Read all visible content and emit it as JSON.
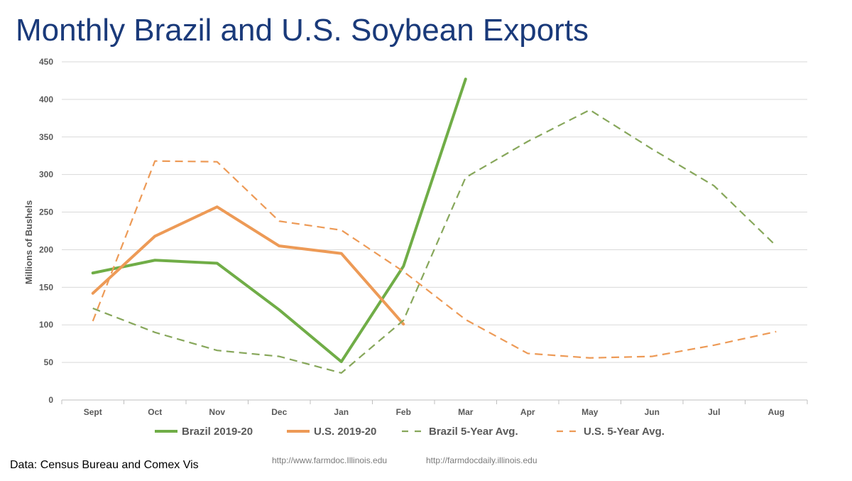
{
  "slide": {
    "title": "Monthly Brazil and U.S. Soybean Exports",
    "source": "Data: Census Bureau and Comex Vis",
    "link1": "http://www.farmdoc.Illinois.edu",
    "link2": "http://farmdocdaily.illinois.edu"
  },
  "chart_data": {
    "type": "line",
    "title": "Monthly Brazil and U.S. Soybean Exports",
    "xlabel": "",
    "ylabel": "Millions of Bushels",
    "ylim": [
      0,
      450
    ],
    "yticks": [
      0,
      50,
      100,
      150,
      200,
      250,
      300,
      350,
      400,
      450
    ],
    "grid": true,
    "legend_position": "bottom",
    "categories": [
      "Sept",
      "Oct",
      "Nov",
      "Dec",
      "Jan",
      "Feb",
      "Mar",
      "Apr",
      "May",
      "Jun",
      "Jul",
      "Aug"
    ],
    "series": [
      {
        "name": "Brazil 2019-20",
        "color": "#70ad47",
        "style": "solid",
        "values": [
          169,
          186,
          182,
          120,
          51,
          178,
          427,
          null,
          null,
          null,
          null,
          null
        ]
      },
      {
        "name": "U.S. 2019-20",
        "color": "#ed9a56",
        "style": "solid",
        "values": [
          142,
          218,
          257,
          205,
          195,
          101,
          null,
          null,
          null,
          null,
          null,
          null
        ]
      },
      {
        "name": "Brazil 5-Year Avg.",
        "color": "#87a75b",
        "style": "dashed",
        "values": [
          122,
          90,
          66,
          58,
          36,
          106,
          296,
          344,
          386,
          334,
          285,
          205
        ]
      },
      {
        "name": "U.S. 5-Year Avg.",
        "color": "#ed9a56",
        "style": "dashed",
        "values": [
          105,
          318,
          317,
          238,
          226,
          171,
          107,
          62,
          56,
          58,
          73,
          91
        ]
      }
    ]
  }
}
